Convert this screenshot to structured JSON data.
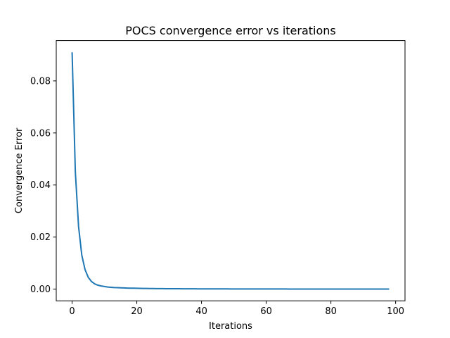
{
  "chart_data": {
    "type": "line",
    "title": "POCS convergence error vs iterations",
    "xlabel": "Iterations",
    "ylabel": "Convergence Error",
    "xlim": [
      -4.9,
      102.9
    ],
    "ylim": [
      -0.0045,
      0.0955
    ],
    "xticks": [
      0,
      20,
      40,
      60,
      80,
      100
    ],
    "xtick_labels": [
      "0",
      "20",
      "40",
      "60",
      "80",
      "100"
    ],
    "yticks": [
      0.0,
      0.02,
      0.04,
      0.06,
      0.08
    ],
    "ytick_labels": [
      "0.00",
      "0.02",
      "0.04",
      "0.06",
      "0.08"
    ],
    "grid": false,
    "series": [
      {
        "color": "#1f77b4",
        "x": [
          0,
          1,
          2,
          3,
          4,
          5,
          6,
          7,
          8,
          9,
          10,
          11,
          12,
          13,
          14,
          15,
          16,
          17,
          18,
          19,
          20,
          21,
          22,
          23,
          24,
          25,
          26,
          27,
          28,
          29,
          30,
          31,
          32,
          33,
          34,
          35,
          36,
          37,
          38,
          39,
          40,
          41,
          42,
          43,
          44,
          45,
          46,
          47,
          48,
          49,
          50,
          51,
          52,
          53,
          54,
          55,
          56,
          57,
          58,
          59,
          60,
          61,
          62,
          63,
          64,
          65,
          66,
          67,
          68,
          69,
          70,
          71,
          72,
          73,
          74,
          75,
          76,
          77,
          78,
          79,
          80,
          81,
          82,
          83,
          84,
          85,
          86,
          87,
          88,
          89,
          90,
          91,
          92,
          93,
          94,
          95,
          96,
          97,
          98
        ],
        "y": [
          0.091,
          0.045,
          0.024,
          0.013,
          0.0075,
          0.0045,
          0.0029,
          0.002,
          0.0015,
          0.0012,
          0.001,
          0.0008,
          0.0007,
          0.0006,
          0.00055,
          0.0005,
          0.00045,
          0.0004,
          0.00037,
          0.00034,
          0.00031,
          0.00029,
          0.00027,
          0.00025,
          0.00023,
          0.00022,
          0.0002,
          0.00019,
          0.00018,
          0.00017,
          0.00016,
          0.00015,
          0.00014,
          0.00014,
          0.00013,
          0.00012,
          0.00012,
          0.00011,
          0.00011,
          0.0001,
          0.0001,
          9.5e-05,
          9e-05,
          8.6e-05,
          8.2e-05,
          7.8e-05,
          7.5e-05,
          7.2e-05,
          6.9e-05,
          6.6e-05,
          6.3e-05,
          6e-05,
          5.8e-05,
          5.6e-05,
          5.4e-05,
          5.2e-05,
          5e-05,
          4.8e-05,
          4.6e-05,
          4.5e-05,
          4.3e-05,
          4.2e-05,
          4e-05,
          3.9e-05,
          3.8e-05,
          3.7e-05,
          3.6e-05,
          3.5e-05,
          3.4e-05,
          3.3e-05,
          3.2e-05,
          3.1e-05,
          3e-05,
          3e-05,
          2.9e-05,
          2.8e-05,
          2.7e-05,
          2.7e-05,
          2.6e-05,
          2.5e-05,
          2.5e-05,
          2.4e-05,
          2.4e-05,
          2.3e-05,
          2.3e-05,
          2.2e-05,
          2.2e-05,
          2.1e-05,
          2.1e-05,
          2e-05,
          2e-05,
          2e-05,
          1.9e-05,
          1.9e-05,
          1.8e-05,
          1.8e-05,
          1.8e-05,
          1.7e-05,
          1.7e-05
        ]
      }
    ]
  }
}
